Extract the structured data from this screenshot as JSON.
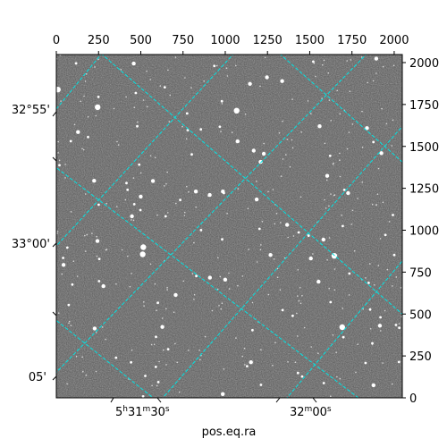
{
  "figure": {
    "xlabel": "pos.eq.ra",
    "ylabel": "",
    "background_color": "#ffffff",
    "image_gray": "#555555",
    "grid_color": "#00e5e5"
  },
  "chart_data": {
    "type": "heatmap",
    "top_axis": {
      "tick_values": [
        0,
        250,
        500,
        750,
        1000,
        1250,
        1500,
        1750,
        2000
      ],
      "tick_labels": [
        "0",
        "250",
        "500",
        "750",
        "1000",
        "1250",
        "1500",
        "1750",
        "2000"
      ],
      "range": [
        0,
        2048
      ]
    },
    "right_axis": {
      "tick_values": [
        0,
        250,
        500,
        750,
        1000,
        1250,
        1500,
        1750,
        2000
      ],
      "tick_labels": [
        "0",
        "250",
        "500",
        "750",
        "1000",
        "1250",
        "1500",
        "1750",
        "2000"
      ],
      "range": [
        0,
        2048
      ]
    },
    "left_axis": {
      "tick_labels": [
        "32°55'",
        "33°00'",
        "05'"
      ]
    },
    "bottom_axis": {
      "tick_labels": [
        "5h31m30s",
        "32m00s"
      ]
    },
    "grid": true
  }
}
